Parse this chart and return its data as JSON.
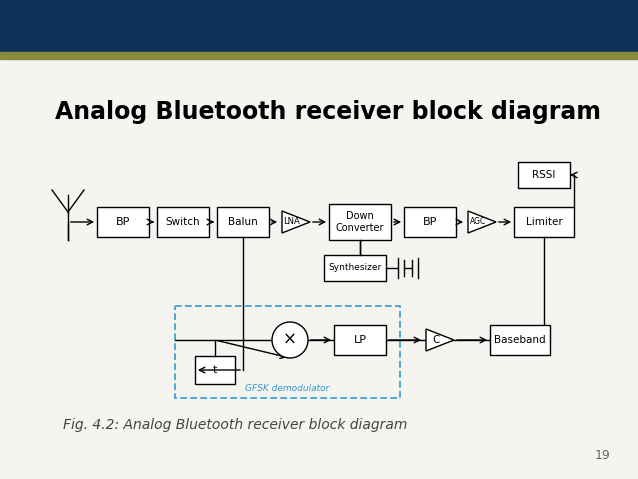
{
  "title": "Analog Bluetooth receiver block diagram",
  "caption": "Fig. 4.2: Analog Bluetooth receiver block diagram",
  "page_number": "19",
  "header_color_top": "#0d3358",
  "header_color_bottom": "#8b8b40",
  "bg_color": "#ffffff",
  "slide_bg": "#f5f4f0",
  "dashed_box_color": "#3399cc",
  "title_fontsize": 17,
  "caption_fontsize": 10,
  "page_fontsize": 9
}
